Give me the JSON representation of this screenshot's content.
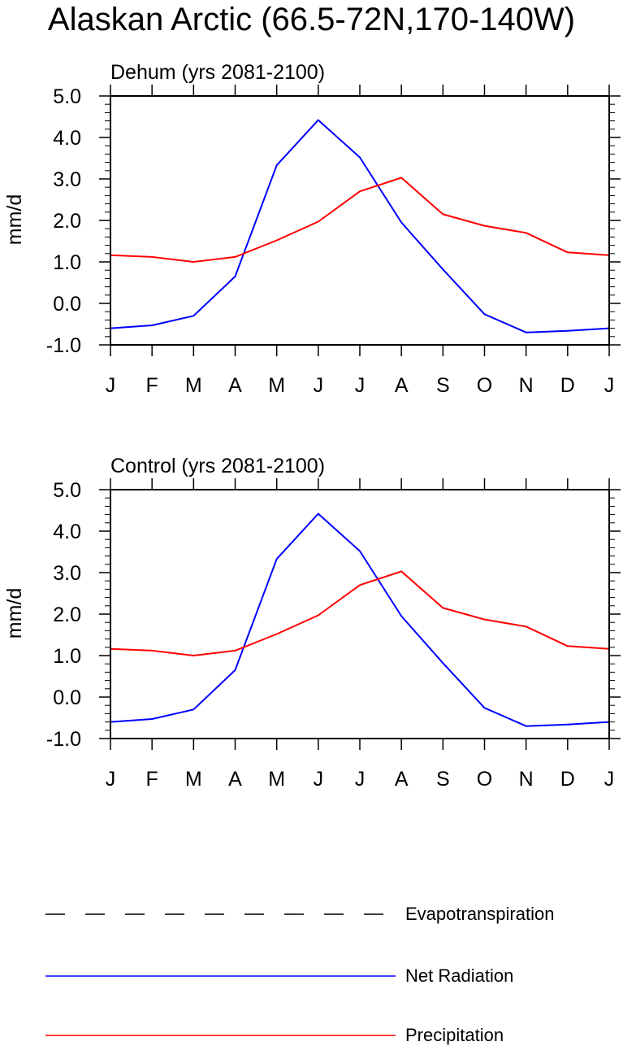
{
  "title": "Alaskan Arctic (66.5-72N,170-140W)",
  "colors": {
    "net_radiation": "#0000ff",
    "precipitation": "#ff0000",
    "evapotranspiration": "#000000",
    "axes": "#000000"
  },
  "legend": {
    "items": [
      {
        "label": "Evapotranspiration",
        "style": "dashed",
        "color": "#000000"
      },
      {
        "label": "Net Radiation",
        "style": "solid",
        "color": "#0000ff"
      },
      {
        "label": "Precipitation",
        "style": "solid",
        "color": "#ff0000"
      }
    ]
  },
  "chart_data": [
    {
      "type": "line",
      "title": "Dehum (yrs 2081-2100)",
      "xlabel": "",
      "ylabel": "mm/d",
      "ylim": [
        -1.0,
        5.0
      ],
      "yticks": [
        "-1.0",
        "0.0",
        "1.0",
        "2.0",
        "3.0",
        "4.0",
        "5.0"
      ],
      "categories": [
        "J",
        "F",
        "M",
        "A",
        "M",
        "J",
        "J",
        "A",
        "S",
        "O",
        "N",
        "D",
        "J"
      ],
      "series": [
        {
          "name": "Net Radiation",
          "color": "#0000ff",
          "values": [
            -0.6,
            -0.53,
            -0.3,
            0.65,
            3.33,
            4.42,
            3.52,
            1.95,
            0.82,
            -0.26,
            -0.7,
            -0.66,
            -0.6
          ]
        },
        {
          "name": "Precipitation",
          "color": "#ff0000",
          "values": [
            1.16,
            1.12,
            1.0,
            1.12,
            1.52,
            1.97,
            2.7,
            3.03,
            2.15,
            1.87,
            1.7,
            1.23,
            1.16
          ]
        }
      ]
    },
    {
      "type": "line",
      "title": "Control (yrs 2081-2100)",
      "xlabel": "",
      "ylabel": "mm/d",
      "ylim": [
        -1.0,
        5.0
      ],
      "yticks": [
        "-1.0",
        "0.0",
        "1.0",
        "2.0",
        "3.0",
        "4.0",
        "5.0"
      ],
      "categories": [
        "J",
        "F",
        "M",
        "A",
        "M",
        "J",
        "J",
        "A",
        "S",
        "O",
        "N",
        "D",
        "J"
      ],
      "series": [
        {
          "name": "Net Radiation",
          "color": "#0000ff",
          "values": [
            -0.6,
            -0.53,
            -0.3,
            0.65,
            3.33,
            4.42,
            3.52,
            1.95,
            0.82,
            -0.26,
            -0.7,
            -0.66,
            -0.6
          ]
        },
        {
          "name": "Precipitation",
          "color": "#ff0000",
          "values": [
            1.16,
            1.12,
            1.0,
            1.12,
            1.52,
            1.97,
            2.7,
            3.03,
            2.15,
            1.87,
            1.7,
            1.23,
            1.16
          ]
        }
      ]
    }
  ]
}
